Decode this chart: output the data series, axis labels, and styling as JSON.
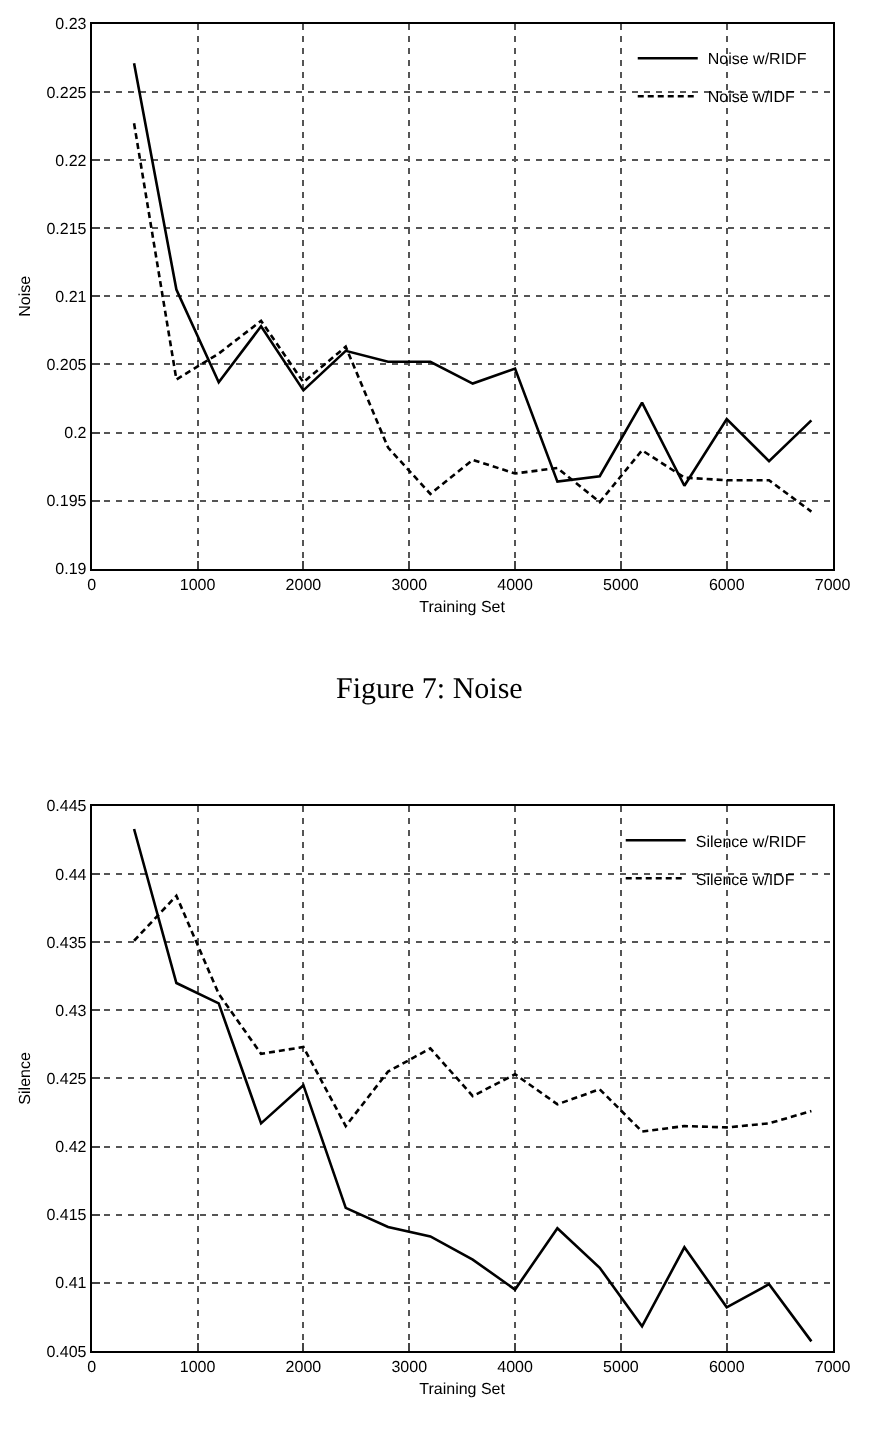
{
  "chart_data": [
    {
      "type": "line",
      "xlabel": "Training Set",
      "ylabel": "Noise",
      "annotations": [
        "Figure 7: Noise"
      ],
      "x": [
        400,
        800,
        1200,
        1600,
        2000,
        2400,
        2800,
        3200,
        3600,
        4000,
        4400,
        4800,
        5200,
        5600,
        6000,
        6400,
        6800
      ],
      "series": [
        {
          "name": "Noise w/RIDF",
          "color": "#000000",
          "line_style": "solid",
          "values": [
            0.2271,
            0.2105,
            0.2037,
            0.2078,
            0.2031,
            0.206,
            0.2052,
            0.2052,
            0.2036,
            0.2047,
            0.1964,
            0.1968,
            0.2022,
            0.1961,
            0.201,
            0.1979,
            0.2009
          ]
        },
        {
          "name": "Noise w/IDF",
          "color": "#000000",
          "line_style": "dashed",
          "values": [
            0.2227,
            0.2039,
            0.2058,
            0.2082,
            0.2037,
            0.2063,
            0.1989,
            0.1955,
            0.198,
            0.197,
            0.1974,
            0.1949,
            0.1987,
            0.1967,
            0.1965,
            0.1965,
            0.1942
          ]
        }
      ],
      "xlim": [
        0,
        7000
      ],
      "xticks": [
        0,
        1000,
        2000,
        3000,
        4000,
        5000,
        6000,
        7000
      ],
      "ylim": [
        0.19,
        0.23
      ],
      "yticks": [
        0.19,
        0.195,
        0.2,
        0.205,
        0.21,
        0.215,
        0.22,
        0.225,
        0.23
      ],
      "grid": true,
      "legend": "top right",
      "marker": "none"
    },
    {
      "type": "line",
      "xlabel": "Training Set",
      "ylabel": "Silence",
      "x": [
        400,
        800,
        1200,
        1600,
        2000,
        2400,
        2800,
        3200,
        3600,
        4000,
        4400,
        4800,
        5200,
        5600,
        6000,
        6400,
        6800
      ],
      "series": [
        {
          "name": "Silence w/RIDF",
          "color": "#000000",
          "line_style": "solid",
          "values": [
            0.4433,
            0.432,
            0.4305,
            0.4217,
            0.4245,
            0.4155,
            0.4141,
            0.4134,
            0.4117,
            0.4095,
            0.414,
            0.4111,
            0.4068,
            0.4126,
            0.4082,
            0.4099,
            0.4057
          ]
        },
        {
          "name": "Silence w/IDF",
          "color": "#000000",
          "line_style": "dashed",
          "values": [
            0.4351,
            0.4384,
            0.4312,
            0.4268,
            0.4273,
            0.4215,
            0.4255,
            0.4272,
            0.4237,
            0.4253,
            0.4231,
            0.4242,
            0.4211,
            0.4215,
            0.4214,
            0.4217,
            0.4226
          ]
        }
      ],
      "xlim": [
        0,
        7000
      ],
      "xticks": [
        0,
        1000,
        2000,
        3000,
        4000,
        5000,
        6000,
        7000
      ],
      "ylim": [
        0.405,
        0.445
      ],
      "yticks": [
        0.405,
        0.41,
        0.415,
        0.42,
        0.425,
        0.43,
        0.435,
        0.44,
        0.445
      ],
      "grid": true,
      "legend": "top right",
      "marker": "none"
    }
  ]
}
